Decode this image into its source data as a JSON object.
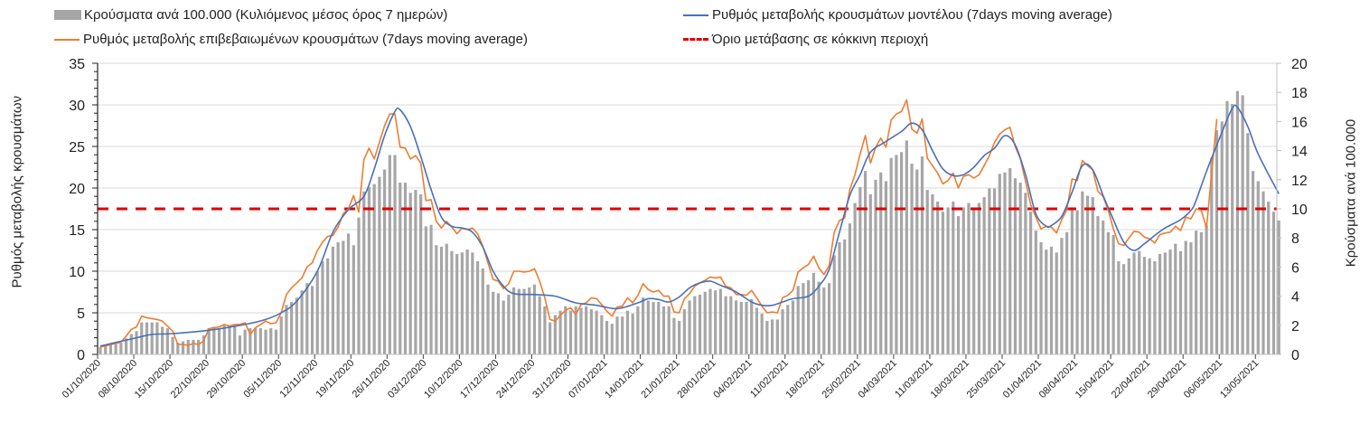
{
  "chart_data": {
    "type": "bar+line",
    "legend": {
      "bars": "Κρούσματα ανά 100.000 (Κυλιόμενος μέσος όρος 7 ημερών)",
      "model": "Ρυθμός μεταβολής κρουσμάτων μοντέλου (7days moving average)",
      "confirmed": "Ρυθμός μεταβολής επιβεβαιωμένων κρουσμάτων (7days moving average)",
      "threshold": "Όριο μετάβασης σε κόκκινη περιοχή"
    },
    "legend_placement": "top",
    "ylabel_left": "Ρυθμός μεταβολής κρουσμάτων",
    "ylabel_right": "Κρούσματα ανά 100.000",
    "ylim_left": [
      0,
      35
    ],
    "yticks_left": [
      "0",
      "5",
      "10",
      "15",
      "20",
      "25",
      "30",
      "35"
    ],
    "ylim_right": [
      0,
      20
    ],
    "yticks_right": [
      "0",
      "2",
      "4",
      "6",
      "8",
      "10",
      "12",
      "14",
      "16",
      "18",
      "20"
    ],
    "x_start": "01/10/2020",
    "x_unit": "day",
    "x_tick_labels": [
      "01/10/2020",
      "08/10/2020",
      "15/10/2020",
      "22/10/2020",
      "29/10/2020",
      "05/11/2020",
      "12/11/2020",
      "19/11/2020",
      "26/11/2020",
      "03/12/2020",
      "10/12/2020",
      "17/12/2020",
      "24/12/2020",
      "31/12/2020",
      "07/01/2021",
      "14/01/2021",
      "21/01/2021",
      "28/01/2021",
      "04/02/2021",
      "11/02/2021",
      "18/02/2021",
      "25/02/2021",
      "04/03/2021",
      "11/03/2021",
      "18/03/2021",
      "25/03/2021",
      "01/04/2021",
      "08/04/2021",
      "15/04/2021",
      "22/04/2021",
      "29/04/2021",
      "06/05/2021",
      "13/05/2021"
    ],
    "x_tick_step_days": 7,
    "grid": true,
    "threshold_left_axis": 17.5,
    "colors": {
      "bars": "#a6a6a6",
      "model": "#4a70b8",
      "confirmed": "#ed7d31",
      "threshold": "#e00000",
      "grid": "#d9d9d9"
    },
    "bars_right_axis_daily": [
      0.5,
      0.6,
      0.7,
      0.7,
      0.8,
      1.1,
      1.4,
      1.6,
      2.2,
      2.2,
      2.2,
      2.2,
      1.9,
      1.8,
      1.2,
      0.8,
      0.9,
      1.0,
      1.0,
      1.0,
      1.3,
      1.8,
      1.9,
      1.8,
      2.0,
      2.0,
      2.0,
      1.3,
      1.7,
      1.8,
      1.8,
      1.8,
      1.7,
      1.8,
      1.7,
      2.6,
      3.4,
      3.6,
      3.9,
      4.4,
      4.9,
      4.7,
      5.7,
      6.4,
      6.6,
      7.4,
      7.7,
      7.8,
      8.3,
      7.5,
      9.4,
      11.2,
      11.5,
      11.7,
      12.2,
      12.7,
      13.7,
      13.7,
      11.8,
      11.8,
      11.1,
      11.3,
      11.0,
      8.8,
      8.9,
      7.5,
      7.4,
      7.6,
      7.1,
      6.9,
      7.0,
      7.2,
      7.0,
      6.4,
      5.9,
      4.8,
      4.3,
      4.2,
      3.7,
      4.1,
      4.6,
      4.5,
      4.5,
      4.6,
      4.8,
      4.0,
      3.3,
      2.2,
      2.7,
      3.0,
      3.3,
      3.0,
      3.3,
      3.2,
      3.3,
      3.1,
      3.0,
      2.7,
      2.3,
      2.1,
      2.6,
      2.6,
      3.0,
      2.8,
      3.3,
      3.9,
      3.7,
      3.6,
      3.6,
      3.3,
      3.3,
      2.5,
      2.3,
      3.1,
      3.7,
      4.0,
      4.1,
      4.3,
      4.5,
      4.4,
      4.5,
      4.0,
      4.0,
      3.7,
      3.6,
      3.6,
      3.8,
      3.2,
      2.8,
      2.3,
      2.4,
      2.4,
      3.1,
      3.4,
      3.7,
      4.7,
      4.9,
      5.1,
      5.6,
      5.0,
      4.6,
      4.9,
      6.8,
      7.7,
      7.9,
      9.0,
      10.4,
      11.5,
      12.6,
      11.0,
      12.0,
      12.5,
      11.9,
      13.5,
      13.7,
      13.9,
      14.7,
      13.1,
      12.7,
      13.6,
      11.3,
      11.0,
      10.5,
      9.8,
      10.1,
      10.5,
      9.5,
      10.1,
      10.4,
      10.1,
      10.4,
      10.8,
      11.4,
      11.4,
      12.4,
      12.5,
      12.8,
      12.1,
      11.8,
      11.1,
      9.8,
      8.5,
      7.7,
      7.2,
      7.4,
      7.0,
      8.0,
      8.4,
      10.1,
      9.9,
      11.2,
      10.9,
      10.8,
      9.5,
      9.2,
      8.4,
      8.2,
      6.4,
      6.2,
      6.6,
      7.0,
      7.1,
      6.7,
      6.6,
      6.4,
      6.9,
      7.0,
      7.2,
      7.6,
      7.1,
      7.8,
      7.7,
      8.5,
      8.4,
      8.9,
      13.5,
      15.4,
      16.0,
      17.4,
      17.2,
      18.1,
      17.8,
      15.2,
      12.6,
      11.9,
      11.2,
      10.5,
      9.8,
      9.2
    ],
    "confirmed_left_axis_daily": [
      0.9,
      1.0,
      1.2,
      1.3,
      1.5,
      2.2,
      3.0,
      3.3,
      4.6,
      4.4,
      4.3,
      4.2,
      4.0,
      3.4,
      2.8,
      1.2,
      1.2,
      1.1,
      1.3,
      1.2,
      1.6,
      3.1,
      3.2,
      3.3,
      3.6,
      3.4,
      3.6,
      3.6,
      3.8,
      2.4,
      3.2,
      3.6,
      4.0,
      3.7,
      3.8,
      5.0,
      7.2,
      8.0,
      8.6,
      9.2,
      10.5,
      11.0,
      12.5,
      13.5,
      14.2,
      14.3,
      15.3,
      16.9,
      17.5,
      19.1,
      17.1,
      23.4,
      24.8,
      23.5,
      25.5,
      27.5,
      28.9,
      28.9,
      24.9,
      24.8,
      23.5,
      23.9,
      23.0,
      18.5,
      18.6,
      16.0,
      15.2,
      16.0,
      15.3,
      14.5,
      15.2,
      15.0,
      15.2,
      14.5,
      13.0,
      11.0,
      9.0,
      8.8,
      7.9,
      8.5,
      10.0,
      10.0,
      9.9,
      10.0,
      10.3,
      8.8,
      6.8,
      4.2,
      4.0,
      4.7,
      5.3,
      5.6,
      4.8,
      6.0,
      6.2,
      6.8,
      6.7,
      6.0,
      5.2,
      4.6,
      5.7,
      5.8,
      6.8,
      6.2,
      7.1,
      8.5,
      7.8,
      7.5,
      7.7,
      7.0,
      7.0,
      5.1,
      5.0,
      6.7,
      7.3,
      8.2,
      8.6,
      8.9,
      9.3,
      9.2,
      9.3,
      8.2,
      8.0,
      7.2,
      7.2,
      7.1,
      7.7,
      6.8,
      5.8,
      5.0,
      5.1,
      5.0,
      6.8,
      7.1,
      7.7,
      9.9,
      10.4,
      10.8,
      11.8,
      10.4,
      9.6,
      10.7,
      14.7,
      16.1,
      16.4,
      19.8,
      21.6,
      24.1,
      26.3,
      23.0,
      24.9,
      26.0,
      24.9,
      28.2,
      28.9,
      29.2,
      30.6,
      27.1,
      26.6,
      28.3,
      23.6,
      22.7,
      21.8,
      20.5,
      20.9,
      21.8,
      20.0,
      21.4,
      21.6,
      21.2,
      21.6,
      22.7,
      23.9,
      25.5,
      26.5,
      27.0,
      27.3,
      25.0,
      23.5,
      20.8,
      18.0,
      16.5,
      15.1,
      15.4,
      15.3,
      14.6,
      16.2,
      17.4,
      21.1,
      20.9,
      23.3,
      22.7,
      22.2,
      19.6,
      19.0,
      17.3,
      15.1,
      13.3,
      13.1,
      14.0,
      14.8,
      14.7,
      14.1,
      13.9,
      13.4,
      14.4,
      14.6,
      14.7,
      15.4,
      14.9,
      16.5,
      16.3,
      17.5,
      17.3,
      15.2,
      21.7,
      28.3
    ],
    "model_left_axis_points_day_value": [
      [
        0,
        1.0
      ],
      [
        7,
        2.0
      ],
      [
        10,
        2.4
      ],
      [
        14,
        2.5
      ],
      [
        21,
        2.9
      ],
      [
        28,
        3.6
      ],
      [
        32,
        4.2
      ],
      [
        35,
        5.0
      ],
      [
        38,
        6.4
      ],
      [
        42,
        10.0
      ],
      [
        45,
        14.7
      ],
      [
        48,
        17.4
      ],
      [
        51,
        19.0
      ],
      [
        53,
        22.3
      ],
      [
        55,
        26.3
      ],
      [
        57,
        29.2
      ],
      [
        58,
        29.4
      ],
      [
        60,
        27.4
      ],
      [
        62,
        23.8
      ],
      [
        64,
        19.8
      ],
      [
        66,
        16.5
      ],
      [
        68,
        15.4
      ],
      [
        70,
        15.2
      ],
      [
        72,
        14.7
      ],
      [
        74,
        12.9
      ],
      [
        76,
        10.0
      ],
      [
        78,
        8.2
      ],
      [
        80,
        7.3
      ],
      [
        84,
        7.2
      ],
      [
        88,
        7.0
      ],
      [
        92,
        6.2
      ],
      [
        96,
        5.9
      ],
      [
        100,
        5.5
      ],
      [
        104,
        6.2
      ],
      [
        106,
        6.7
      ],
      [
        108,
        6.6
      ],
      [
        110,
        6.3
      ],
      [
        112,
        6.9
      ],
      [
        114,
        8.0
      ],
      [
        116,
        8.6
      ],
      [
        118,
        8.8
      ],
      [
        120,
        8.3
      ],
      [
        123,
        7.5
      ],
      [
        126,
        6.3
      ],
      [
        128,
        5.9
      ],
      [
        130,
        5.9
      ],
      [
        132,
        6.3
      ],
      [
        134,
        6.7
      ],
      [
        137,
        7.0
      ],
      [
        139,
        8.2
      ],
      [
        141,
        10.2
      ],
      [
        143,
        14.7
      ],
      [
        145,
        19.1
      ],
      [
        147,
        21.6
      ],
      [
        149,
        24.3
      ],
      [
        152,
        25.6
      ],
      [
        155,
        26.8
      ],
      [
        157,
        27.8
      ],
      [
        159,
        27.0
      ],
      [
        161,
        24.5
      ],
      [
        163,
        22.3
      ],
      [
        165,
        21.5
      ],
      [
        167,
        21.6
      ],
      [
        169,
        22.5
      ],
      [
        171,
        23.9
      ],
      [
        173,
        24.8
      ],
      [
        175,
        26.3
      ],
      [
        177,
        25.2
      ],
      [
        179,
        21.6
      ],
      [
        181,
        16.9
      ],
      [
        183,
        15.4
      ],
      [
        184,
        15.5
      ],
      [
        186,
        16.6
      ],
      [
        188,
        19.5
      ],
      [
        190,
        22.7
      ],
      [
        192,
        22.2
      ],
      [
        194,
        19.1
      ],
      [
        196,
        16.2
      ],
      [
        198,
        13.5
      ],
      [
        200,
        12.5
      ],
      [
        202,
        13.3
      ],
      [
        204,
        14.3
      ],
      [
        206,
        15.2
      ],
      [
        209,
        16.2
      ],
      [
        211,
        17.3
      ],
      [
        212,
        18.5
      ],
      [
        214,
        22.0
      ],
      [
        217,
        26.7
      ],
      [
        219,
        29.6
      ],
      [
        220,
        29.7
      ],
      [
        222,
        27.4
      ],
      [
        224,
        24.1
      ],
      [
        228,
        19.3
      ]
    ]
  }
}
